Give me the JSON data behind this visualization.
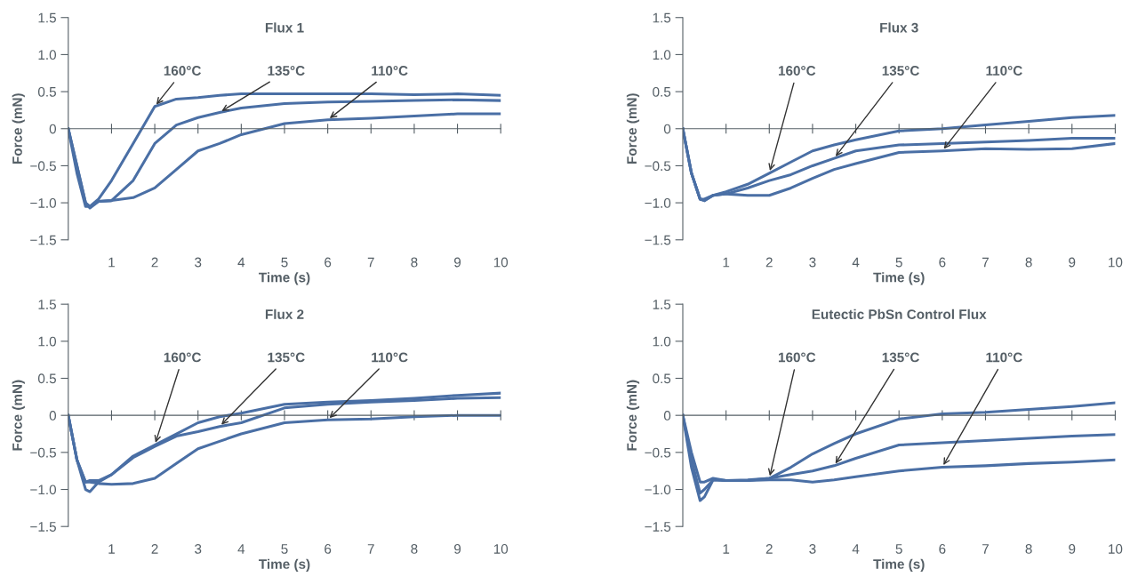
{
  "chart_data": [
    {
      "type": "line",
      "title": "Flux 1",
      "xlabel": "Time (s)",
      "ylabel": "Force (mN)",
      "x": [
        0,
        0.2,
        0.4,
        0.5,
        0.7,
        1,
        1.5,
        2,
        2.5,
        3,
        3.5,
        4,
        5,
        6,
        7,
        8,
        9,
        10
      ],
      "xlim": [
        0,
        10
      ],
      "ylim": [
        -1.5,
        1.5
      ],
      "xticks": [
        1,
        2,
        3,
        4,
        5,
        6,
        7,
        8,
        9,
        10
      ],
      "yticks": [
        {
          "value": -1.5,
          "label": "−1.5"
        },
        {
          "value": -1,
          "label": "−1.0"
        },
        {
          "value": -0.5,
          "label": "−0.5"
        },
        0,
        0.5,
        {
          "value": 1,
          "label": "1.0"
        },
        1.5
      ],
      "series": [
        {
          "name": "160°C",
          "color": "#4a6fa5",
          "values": [
            0,
            -0.6,
            -1.05,
            -1.05,
            -0.95,
            -0.7,
            -0.2,
            0.3,
            0.4,
            0.42,
            0.45,
            0.47,
            0.47,
            0.47,
            0.47,
            0.46,
            0.47,
            0.45
          ]
        },
        {
          "name": "135°C",
          "color": "#4a6fa5",
          "values": [
            0,
            -0.5,
            -1.0,
            -1.07,
            -0.98,
            -0.97,
            -0.7,
            -0.2,
            0.05,
            0.15,
            0.22,
            0.28,
            0.34,
            0.36,
            0.37,
            0.38,
            0.39,
            0.38
          ]
        },
        {
          "name": "110°C",
          "color": "#4a6fa5",
          "values": [
            0,
            -0.5,
            -1.0,
            -1.05,
            -0.98,
            -0.97,
            -0.93,
            -0.8,
            -0.55,
            -0.3,
            -0.2,
            -0.08,
            0.07,
            0.12,
            0.14,
            0.17,
            0.2,
            0.2
          ]
        }
      ]
    },
    {
      "type": "line",
      "title": "Flux 3",
      "xlabel": "Time (s)",
      "ylabel": "Force (mN)",
      "x": [
        0,
        0.2,
        0.4,
        0.5,
        0.7,
        1,
        1.5,
        2,
        2.5,
        3,
        3.5,
        4,
        5,
        6,
        7,
        8,
        9,
        10
      ],
      "xlim": [
        0,
        10
      ],
      "ylim": [
        -1.5,
        1.5
      ],
      "xticks": [
        1,
        2,
        3,
        4,
        5,
        6,
        7,
        8,
        9,
        10
      ],
      "yticks": [
        {
          "value": -1.5,
          "label": "−1.5"
        },
        {
          "value": -1,
          "label": "−1.0"
        },
        {
          "value": -0.5,
          "label": "−0.5"
        },
        0,
        0.5,
        {
          "value": 1,
          "label": "1.0"
        },
        1.5
      ],
      "series": [
        {
          "name": "160°C",
          "color": "#4a6fa5",
          "values": [
            0,
            -0.6,
            -0.95,
            -0.95,
            -0.9,
            -0.85,
            -0.75,
            -0.6,
            -0.45,
            -0.3,
            -0.22,
            -0.15,
            -0.03,
            0.0,
            0.05,
            0.1,
            0.15,
            0.18
          ]
        },
        {
          "name": "135°C",
          "color": "#4a6fa5",
          "values": [
            0,
            -0.6,
            -0.95,
            -0.97,
            -0.9,
            -0.88,
            -0.8,
            -0.7,
            -0.62,
            -0.5,
            -0.4,
            -0.3,
            -0.22,
            -0.2,
            -0.18,
            -0.16,
            -0.13,
            -0.13
          ]
        },
        {
          "name": "110°C",
          "color": "#4a6fa5",
          "values": [
            0,
            -0.6,
            -0.95,
            -0.97,
            -0.9,
            -0.88,
            -0.9,
            -0.9,
            -0.8,
            -0.67,
            -0.55,
            -0.47,
            -0.32,
            -0.3,
            -0.27,
            -0.28,
            -0.27,
            -0.2
          ]
        }
      ]
    },
    {
      "type": "line",
      "title": "Flux 2",
      "xlabel": "Time (s)",
      "ylabel": "Force (mN)",
      "x": [
        0,
        0.2,
        0.4,
        0.5,
        0.7,
        1,
        1.5,
        2,
        2.5,
        3,
        3.5,
        4,
        5,
        6,
        7,
        8,
        9,
        10
      ],
      "xlim": [
        0,
        10
      ],
      "ylim": [
        -1.5,
        1.5
      ],
      "xticks": [
        1,
        2,
        3,
        4,
        5,
        6,
        7,
        8,
        9,
        10
      ],
      "yticks": [
        {
          "value": -1.5,
          "label": "−1.5"
        },
        {
          "value": -1,
          "label": "−1.0"
        },
        {
          "value": -0.5,
          "label": "−0.5"
        },
        0,
        0.5,
        {
          "value": 1,
          "label": "1.0"
        },
        1.5
      ],
      "series": [
        {
          "name": "160°C",
          "color": "#4a6fa5",
          "values": [
            0,
            -0.6,
            -1.0,
            -1.03,
            -0.9,
            -0.8,
            -0.55,
            -0.4,
            -0.25,
            -0.1,
            -0.02,
            0.03,
            0.15,
            0.18,
            0.2,
            0.23,
            0.27,
            0.3
          ]
        },
        {
          "name": "135°C",
          "color": "#4a6fa5",
          "values": [
            0,
            -0.6,
            -0.9,
            -0.88,
            -0.88,
            -0.8,
            -0.57,
            -0.42,
            -0.28,
            -0.22,
            -0.15,
            -0.1,
            0.1,
            0.15,
            0.18,
            0.2,
            0.23,
            0.24
          ]
        },
        {
          "name": "110°C",
          "color": "#4a6fa5",
          "values": [
            0,
            -0.6,
            -0.9,
            -0.9,
            -0.92,
            -0.93,
            -0.92,
            -0.85,
            -0.65,
            -0.45,
            -0.35,
            -0.25,
            -0.1,
            -0.06,
            -0.05,
            -0.02,
            0,
            0
          ]
        }
      ]
    },
    {
      "type": "line",
      "title": "Eutectic PbSn Control Flux",
      "xlabel": "Time (s)",
      "ylabel": "Force (mN)",
      "x": [
        0,
        0.2,
        0.4,
        0.5,
        0.7,
        1,
        1.5,
        2,
        2.5,
        3,
        3.5,
        4,
        5,
        6,
        7,
        8,
        9,
        10
      ],
      "xlim": [
        0,
        10
      ],
      "ylim": [
        -1.5,
        1.5
      ],
      "xticks": [
        1,
        2,
        3,
        4,
        5,
        6,
        7,
        8,
        9,
        10
      ],
      "yticks": [
        {
          "value": -1.5,
          "label": "−1.5"
        },
        {
          "value": -1,
          "label": "−1.0"
        },
        {
          "value": -0.5,
          "label": "−0.5"
        },
        0,
        0.5,
        {
          "value": 1,
          "label": "1.0"
        },
        1.5
      ],
      "series": [
        {
          "name": "160°C",
          "color": "#4a6fa5",
          "values": [
            0,
            -0.7,
            -1.15,
            -1.1,
            -0.87,
            -0.88,
            -0.88,
            -0.85,
            -0.7,
            -0.52,
            -0.38,
            -0.25,
            -0.05,
            0.02,
            0.04,
            0.08,
            0.12,
            0.17
          ]
        },
        {
          "name": "135°C",
          "color": "#4a6fa5",
          "values": [
            0,
            -0.6,
            -1.05,
            -1.0,
            -0.87,
            -0.88,
            -0.87,
            -0.85,
            -0.8,
            -0.75,
            -0.68,
            -0.58,
            -0.4,
            -0.37,
            -0.34,
            -0.31,
            -0.28,
            -0.26
          ]
        },
        {
          "name": "110°C",
          "color": "#4a6fa5",
          "values": [
            0,
            -0.5,
            -0.9,
            -0.9,
            -0.85,
            -0.88,
            -0.88,
            -0.87,
            -0.87,
            -0.9,
            -0.87,
            -0.83,
            -0.75,
            -0.7,
            -0.68,
            -0.65,
            -0.63,
            -0.6
          ]
        }
      ]
    }
  ]
}
